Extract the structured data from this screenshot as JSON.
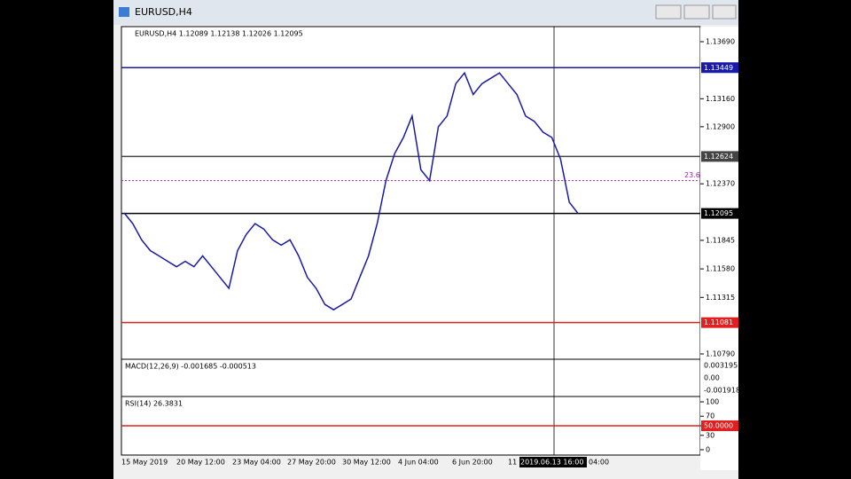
{
  "window": {
    "title": "EURUSD,H4"
  },
  "chart": {
    "info": "EURUSD,H4  1.12089 1.12138 1.12026 1.12095",
    "price_range": [
      1.1079,
      1.1369
    ],
    "price_ticks": [
      {
        "value": 1.1369,
        "label": "1.13690"
      },
      {
        "value": 1.1316,
        "label": "1.13160"
      },
      {
        "value": 1.129,
        "label": "1.12900"
      },
      {
        "value": 1.1237,
        "label": "1.12370"
      },
      {
        "value": 1.11845,
        "label": "1.11845"
      },
      {
        "value": 1.1158,
        "label": "1.11580"
      },
      {
        "value": 1.11315,
        "label": "1.11315"
      },
      {
        "value": 1.1079,
        "label": "1.10790"
      }
    ],
    "levels": [
      {
        "value": 1.13449,
        "label": "1.13449",
        "color": "#1a1aa8"
      },
      {
        "value": 1.12624,
        "label": "1.12624",
        "color": "#444444"
      },
      {
        "value": 1.12095,
        "label": "1.12095",
        "color": "#000000"
      },
      {
        "value": 1.11081,
        "label": "1.11081",
        "color": "#e02020"
      }
    ],
    "fib": {
      "value": 1.124,
      "label": "23.6"
    },
    "closes": [
      1.121,
      1.12,
      1.1185,
      1.1175,
      1.117,
      1.1165,
      1.116,
      1.1165,
      1.116,
      1.117,
      1.116,
      1.115,
      1.114,
      1.1175,
      1.119,
      1.12,
      1.1195,
      1.1185,
      1.118,
      1.1185,
      1.117,
      1.115,
      1.114,
      1.1125,
      1.112,
      1.1125,
      1.113,
      1.115,
      1.117,
      1.12,
      1.124,
      1.1265,
      1.128,
      1.13,
      1.125,
      1.124,
      1.129,
      1.13,
      1.133,
      1.134,
      1.132,
      1.133,
      1.1335,
      1.134,
      1.133,
      1.132,
      1.13,
      1.1295,
      1.1285,
      1.128,
      1.126,
      1.122,
      1.12095
    ],
    "macd": {
      "info": "MACD(12,26,9) -0.001685 -0.000513",
      "ticks": [
        "0.003195",
        "0.00",
        "-0.001918"
      ]
    },
    "rsi": {
      "info": "RSI(14) 26.3831",
      "ticks": [
        {
          "value": 100,
          "label": "100"
        },
        {
          "value": 70,
          "label": "70"
        },
        {
          "value": 50,
          "label": "50.0000"
        },
        {
          "value": 30,
          "label": "30"
        },
        {
          "value": 0,
          "label": "0"
        }
      ]
    },
    "dates": [
      "15 May 2019",
      "20 May 12:00",
      "23 May 04:00",
      "27 May 20:00",
      "30 May 12:00",
      "4 Jun 04:00",
      "6 Jun 20:00",
      "11",
      "2019.06.13 16:00",
      "04:00"
    ]
  }
}
